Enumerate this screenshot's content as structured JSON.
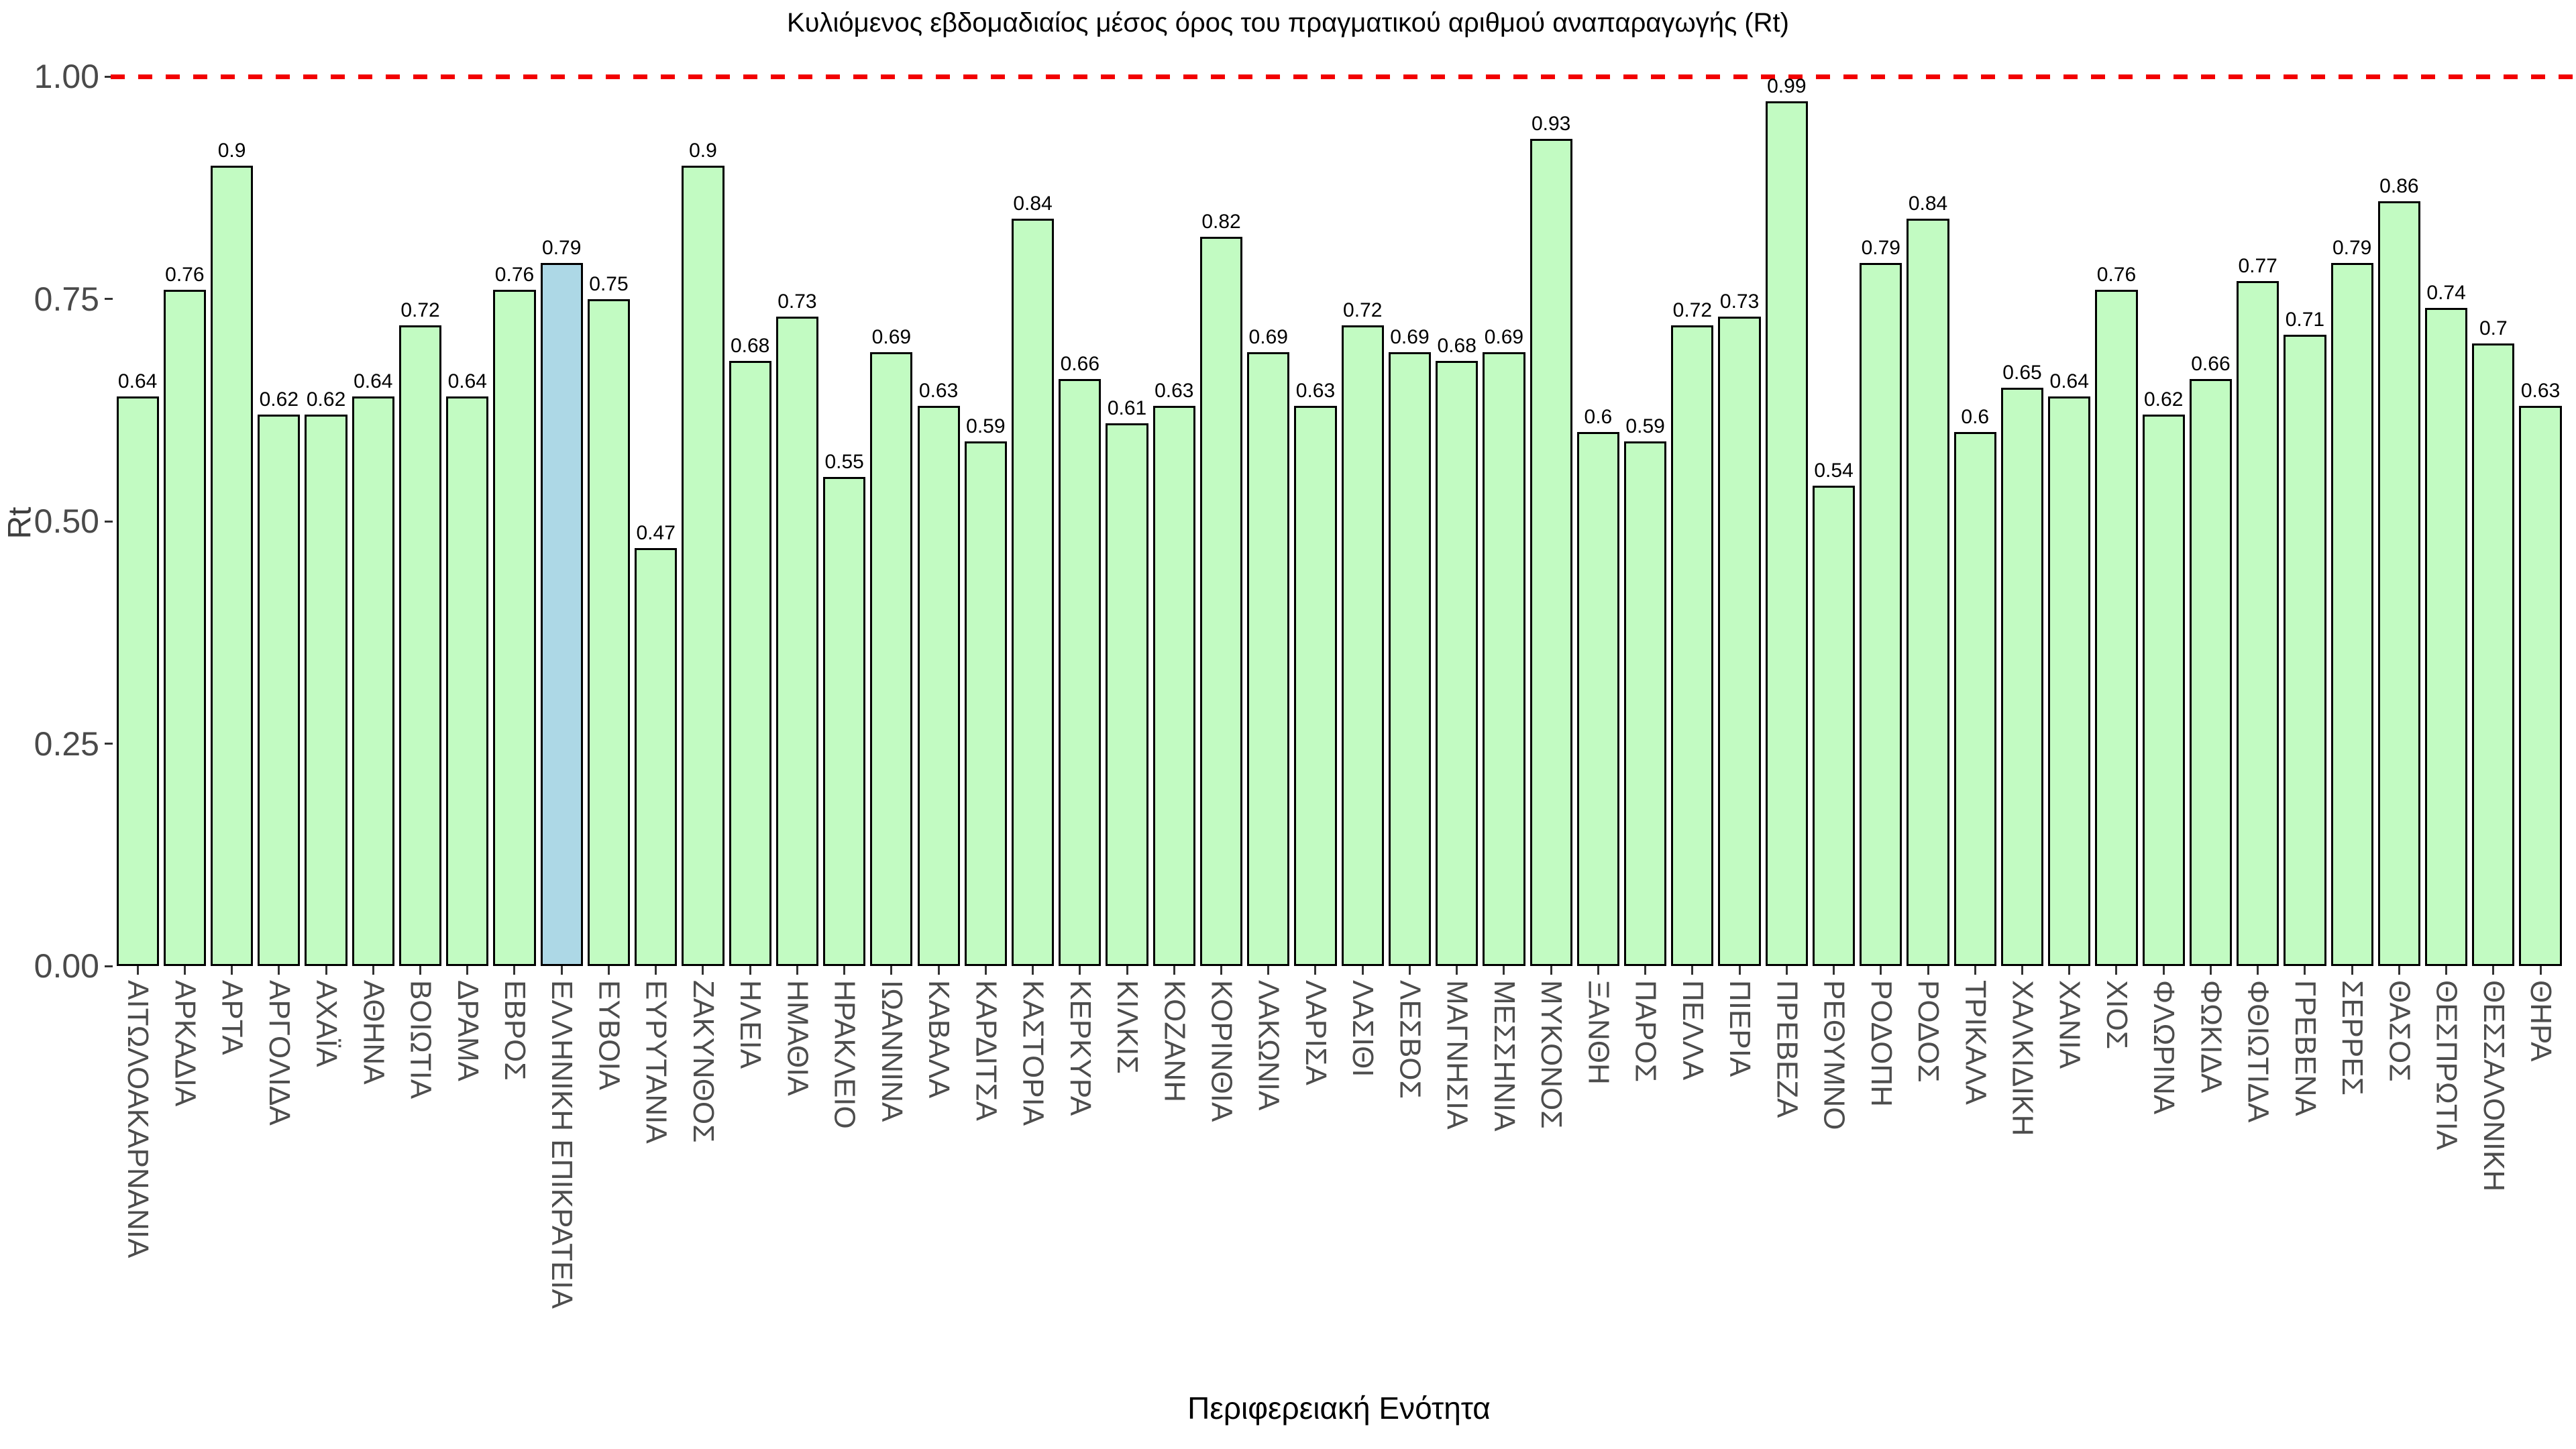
{
  "chart_data": {
    "type": "bar",
    "title": "Κυλιόμενος εβδομαδιαίος μέσος όρος του πραγματικού αριθμού αναπαραγωγής (Rt)",
    "xlabel": "Περιφερειακή Ενότητα",
    "ylabel": "Rt",
    "ylim": [
      0,
      1.02
    ],
    "yticks": [
      "0.00",
      "0.25",
      "0.50",
      "0.75",
      "1.00"
    ],
    "grid": false,
    "legend": false,
    "reference_line": {
      "value": 1.0,
      "color": "#f20000",
      "style": "dashed"
    },
    "bar_fill": "#c2fbc2",
    "bar_edge": "#000000",
    "highlight_category": "ΕΛΛΗΝΙΚΗ ΕΠΙΚΡΑΤΕΙΑ",
    "highlight_fill": "#add8e6",
    "categories": [
      "ΑΙΤΩΛΟΑΚΑΡΝΑΝΙΑ",
      "ΑΡΚΑΔΙΑ",
      "ΑΡΤΑ",
      "ΑΡΓΟΛΙΔΑ",
      "ΑΧΑΪΑ",
      "ΑΘΗΝΑ",
      "ΒΟΙΩΤΙΑ",
      "ΔΡΑΜΑ",
      "ΕΒΡΟΣ",
      "ΕΛΛΗΝΙΚΗ ΕΠΙΚΡΑΤΕΙΑ",
      "ΕΥΒΟΙΑ",
      "ΕΥΡΥΤΑΝΙΑ",
      "ΖΑΚΥΝΘΟΣ",
      "ΗΛΕΙΑ",
      "ΗΜΑΘΙΑ",
      "ΗΡΑΚΛΕΙΟ",
      "ΙΩΑΝΝΙΝΑ",
      "ΚΑΒΑΛΑ",
      "ΚΑΡΔΙΤΣΑ",
      "ΚΑΣΤΟΡΙΑ",
      "ΚΕΡΚΥΡΑ",
      "ΚΙΛΚΙΣ",
      "ΚΟΖΑΝΗ",
      "ΚΟΡΙΝΘΙΑ",
      "ΛΑΚΩΝΙΑ",
      "ΛΑΡΙΣΑ",
      "ΛΑΣΙΘΙ",
      "ΛΕΣΒΟΣ",
      "ΜΑΓΝΗΣΙΑ",
      "ΜΕΣΣΗΝΙΑ",
      "ΜΥΚΟΝΟΣ",
      "ΞΑΝΘΗ",
      "ΠΑΡΟΣ",
      "ΠΕΛΛΑ",
      "ΠΙΕΡΙΑ",
      "ΠΡΕΒΕΖΑ",
      "ΡΕΘΥΜΝΟ",
      "ΡΟΔΟΠΗ",
      "ΡΟΔΟΣ",
      "ΤΡΙΚΑΛΑ",
      "ΧΑΛΚΙΔΙΚΗ",
      "ΧΑΝΙΑ",
      "ΧΙΟΣ",
      "ΦΛΩΡΙΝΑ",
      "ΦΩΚΙΔΑ",
      "ΦΘΙΩΤΙΔΑ",
      "ΓΡΕΒΕΝΑ",
      "ΣΕΡΡΕΣ",
      "ΘΑΣΟΣ",
      "ΘΕΣΠΡΩΤΙΑ",
      "ΘΕΣΣΑΛΟΝΙΚΗ",
      "ΘΗΡΑ"
    ],
    "values": [
      0.64,
      0.76,
      0.9,
      0.62,
      0.62,
      0.64,
      0.72,
      0.64,
      0.76,
      0.79,
      0.75,
      0.47,
      0.9,
      0.68,
      0.73,
      0.55,
      0.69,
      0.63,
      0.59,
      0.84,
      0.66,
      0.61,
      0.63,
      0.82,
      0.69,
      0.63,
      0.72,
      0.69,
      0.68,
      0.69,
      0.93,
      0.6,
      0.59,
      0.72,
      0.73,
      0.99,
      0.54,
      0.79,
      0.84,
      0.6,
      0.65,
      0.64,
      0.76,
      0.62,
      0.66,
      0.77,
      0.71,
      0.79,
      0.86,
      0.74,
      0.7,
      0.63
    ],
    "value_labels": [
      "0.64",
      "0.76",
      "0.9",
      "0.62",
      "0.62",
      "0.64",
      "0.72",
      "0.64",
      "0.76",
      "0.79",
      "0.75",
      "0.47",
      "0.9",
      "0.68",
      "0.73",
      "0.55",
      "0.69",
      "0.63",
      "0.59",
      "0.84",
      "0.66",
      "0.61",
      "0.63",
      "0.82",
      "0.69",
      "0.63",
      "0.72",
      "0.69",
      "0.68",
      "0.69",
      "0.93",
      "0.6",
      "0.59",
      "0.72",
      "0.73",
      "0.99",
      "0.54",
      "0.79",
      "0.84",
      "0.6",
      "0.65",
      "0.64",
      "0.76",
      "0.62",
      "0.66",
      "0.77",
      "0.71",
      "0.79",
      "0.86",
      "0.74",
      "0.7",
      "0.63"
    ]
  }
}
